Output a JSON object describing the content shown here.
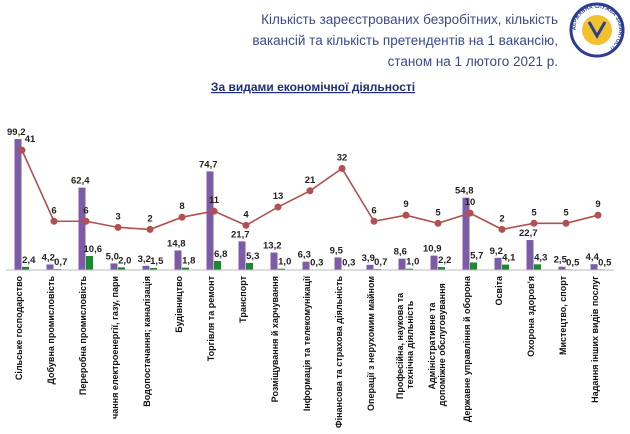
{
  "header": {
    "title_lines": [
      "Кількість зареєстрованих безробітних, кількість",
      "вакансій та кількість претендентів на 1 вакансію,",
      "станом на 1 лютого 2021 р."
    ],
    "logo_text": "ДЕРЖАВНА СЛУЖБА ЗАЙНЯТОСТІ"
  },
  "chart_data": {
    "type": "bar-line",
    "title": "За видами економічної діяльності",
    "categories": [
      "Сільське господарство",
      "Добувна промисловість",
      "Переробна промисловість",
      "чання електроенергії, газу, пари",
      "Водопостачання; каналізація",
      "Будівництво",
      "Торгівля та ремонт",
      "Транспорт",
      "Розміщування й харчування",
      "Інформація та телекомунікації",
      "Фінансова та страхова діяльність",
      "Операції з нерухомим майном",
      "Професійна, наукова та технічна діяльність",
      "Адміністративне та допоміжне обслуговування",
      "Державне управління й оборона",
      "Освіта",
      "Охорона здоров'я",
      "Мистецтво, спорт",
      "Надання інших видів послуг"
    ],
    "ylim": [
      0,
      100
    ],
    "y2lim": [
      -18,
      47
    ],
    "series": [
      {
        "color": "#7d5ba6",
        "values": [
          99.2,
          4.2,
          62.4,
          5.0,
          3.2,
          14.8,
          74.7,
          21.7,
          13.2,
          6.3,
          9.5,
          3.9,
          8.6,
          10.9,
          54.8,
          9.2,
          22.7,
          2.5,
          4.4
        ],
        "value_labels": [
          "99,2",
          "4,2",
          "62,4",
          "5,0",
          "3,2",
          "14,8",
          "74,7",
          "21,7",
          "13,2",
          "6,3",
          "9,5",
          "3,9",
          "8,6",
          "10,9",
          "54,8",
          "9,2",
          "22,7",
          "2,5",
          "4,4"
        ]
      },
      {
        "color": "#1a8a2e",
        "values": [
          2.4,
          0.7,
          10.6,
          2.0,
          1.5,
          1.8,
          6.8,
          5.3,
          1.0,
          0.3,
          0.3,
          0.7,
          1.0,
          2.2,
          5.7,
          4.1,
          4.3,
          0.5,
          0.5
        ],
        "value_labels": [
          "2,4",
          "0,7",
          "10,6",
          "2,0",
          "1,5",
          "1,8",
          "6,8",
          "5,3",
          "1,0",
          "0,3",
          "0,3",
          "0,7",
          "1,0",
          "2,2",
          "5,7",
          "4,1",
          "4,3",
          "0,5",
          "0,5"
        ]
      },
      {
        "color": "#b0504f",
        "axis": "y2",
        "type": "line",
        "values": [
          41,
          6,
          6,
          3,
          2,
          8,
          11,
          4,
          13,
          21,
          32,
          6,
          9,
          5,
          10,
          2,
          5,
          5,
          9
        ]
      }
    ]
  }
}
